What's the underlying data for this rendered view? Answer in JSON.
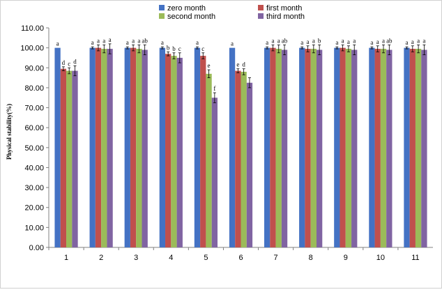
{
  "chart_data": {
    "type": "bar",
    "title": "",
    "xlabel": "",
    "ylabel": "Physical stability(%)",
    "ylim": [
      0,
      110
    ],
    "ytick_step": 10,
    "ytick_labels": [
      "0.00",
      "10.00",
      "20.00",
      "30.00",
      "40.00",
      "50.00",
      "60.00",
      "70.00",
      "80.00",
      "90.00",
      "100.00",
      "110.00"
    ],
    "categories": [
      "1",
      "2",
      "3",
      "4",
      "5",
      "6",
      "7",
      "8",
      "9",
      "10",
      "11"
    ],
    "grid": false,
    "legend_position": "top",
    "series": [
      {
        "name": "zero month",
        "color": "#4472C4",
        "values": [
          100,
          100,
          100,
          100,
          100,
          100,
          100,
          100,
          100,
          100,
          100
        ],
        "errors": [
          0,
          0.5,
          0.5,
          0.5,
          0.5,
          0,
          0.5,
          0.5,
          0.5,
          0.5,
          0.5
        ],
        "labels": [
          "a",
          "a",
          "a",
          "a",
          "a",
          "a",
          "a",
          "a",
          "a",
          "a",
          "a"
        ]
      },
      {
        "name": "first month",
        "color": "#C0504D",
        "values": [
          89.5,
          100,
          100,
          97,
          96,
          88.5,
          100,
          99.5,
          100,
          99.5,
          99.5
        ],
        "errors": [
          1,
          1.5,
          1.5,
          1,
          1.5,
          1,
          1.5,
          1.5,
          1.5,
          1.5,
          1.5
        ],
        "labels": [
          "d",
          "a",
          "a",
          "b",
          "c",
          "e",
          "a",
          "a",
          "a",
          "a",
          "a"
        ]
      },
      {
        "name": "second month",
        "color": "#9BBB59",
        "values": [
          88.5,
          99.5,
          99.5,
          96,
          87,
          88,
          99.5,
          99.5,
          99.5,
          99.5,
          99.5
        ],
        "errors": [
          1.5,
          2,
          2,
          1.5,
          2,
          1.5,
          2,
          2,
          1.5,
          2,
          2
        ],
        "labels": [
          "c",
          "a",
          "a",
          "b",
          "e",
          "d",
          "a",
          "a",
          "a",
          "a",
          "a"
        ]
      },
      {
        "name": "third month",
        "color": "#8064A2",
        "values": [
          88.5,
          99.5,
          99,
          95,
          75,
          82.5,
          99,
          99,
          99,
          99,
          99
        ],
        "errors": [
          2.5,
          2.5,
          2.5,
          2.5,
          2.5,
          2.5,
          2.5,
          2.5,
          2.5,
          2.5,
          2.5
        ],
        "labels": [
          "d",
          "a",
          "ab",
          "c",
          "f",
          "",
          "ab",
          "b",
          "a",
          "ab",
          "a"
        ]
      }
    ]
  }
}
